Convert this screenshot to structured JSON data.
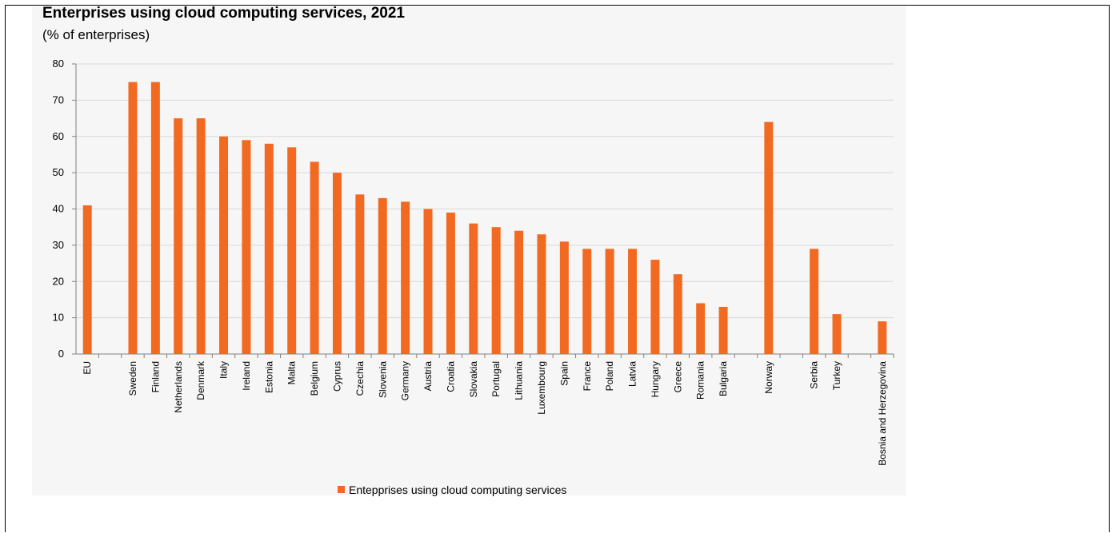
{
  "title": "Enterprises using cloud computing services, 2021",
  "subtitle": "(% of enterprises)",
  "colors": {
    "bar": "#F26A21",
    "grid": "#d9d9d9",
    "axis": "#808080"
  },
  "chart_data": {
    "type": "bar",
    "title": "Enterprises using cloud computing services, 2021",
    "subtitle": "(% of enterprises)",
    "xlabel": "",
    "ylabel": "",
    "ylim": [
      0,
      80
    ],
    "yticks": [
      0,
      10,
      20,
      30,
      40,
      50,
      60,
      70,
      80
    ],
    "grid": true,
    "legend_position": "bottom",
    "categories": [
      "EU",
      "",
      "Sweden",
      "Finland",
      "Netherlands",
      "Denmark",
      "Italy",
      "Ireland",
      "Estonia",
      "Malta",
      "Belgium",
      "Cyprus",
      "Czechia",
      "Slovenia",
      "Germany",
      "Austria",
      "Croatia",
      "Slovakia",
      "Portugal",
      "Lithuania",
      "Luxembourg",
      "Spain",
      "France",
      "Poland",
      "Latvia",
      "Hungary",
      "Greece",
      "Romania",
      "Bulgaria",
      "",
      "Norway",
      "",
      "Serbia",
      "Turkey",
      "",
      "Bosnia and Herzegovina"
    ],
    "series": [
      {
        "name": "Entepprises using cloud computing services",
        "values": [
          41,
          null,
          75,
          75,
          65,
          65,
          60,
          59,
          58,
          57,
          53,
          50,
          44,
          43,
          42,
          40,
          39,
          36,
          35,
          34,
          33,
          31,
          29,
          29,
          29,
          26,
          22,
          14,
          13,
          null,
          64,
          null,
          29,
          11,
          null,
          9
        ]
      }
    ]
  }
}
